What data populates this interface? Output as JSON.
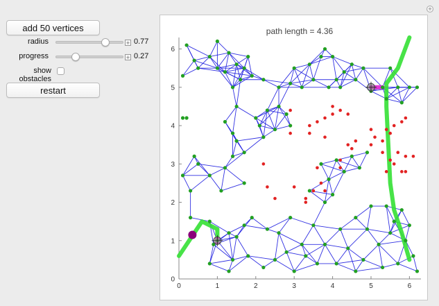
{
  "controls": {
    "add_button_label": "add 50 vertices",
    "radius": {
      "label": "radius",
      "value": "0.77",
      "fraction": 0.77
    },
    "progress": {
      "label": "progress",
      "value": "0.27",
      "fraction": 0.27
    },
    "show_obstacles_label": "show obstacles",
    "show_obstacles_checked": false,
    "restart_label": "restart"
  },
  "plot": {
    "title": "path length = 4.36",
    "x_ticks": [
      "0",
      "1",
      "2",
      "3",
      "4",
      "5",
      "6"
    ],
    "y_ticks": [
      "0",
      "1",
      "2",
      "3",
      "4",
      "5",
      "6"
    ],
    "colors": {
      "edge": "#1a1adf",
      "vertex": "#22a022",
      "obstacle": "#e22222",
      "path": "#34e034",
      "path_segment": "#e020d0",
      "agent": "#8a007a"
    }
  },
  "chart_data": {
    "type": "scatter",
    "title": "path length = 4.36",
    "xlim": [
      0,
      6.3
    ],
    "ylim": [
      0,
      6.3
    ],
    "vertices": [
      [
        0.2,
        6.1
      ],
      [
        0.4,
        5.7
      ],
      [
        0.1,
        5.3
      ],
      [
        0.5,
        5.5
      ],
      [
        0.8,
        5.8
      ],
      [
        1.0,
        5.5
      ],
      [
        1.0,
        6.2
      ],
      [
        1.3,
        5.9
      ],
      [
        1.5,
        5.6
      ],
      [
        1.6,
        5.2
      ],
      [
        1.8,
        5.8
      ],
      [
        1.2,
        5.4
      ],
      [
        1.7,
        5.5
      ],
      [
        1.9,
        5.3
      ],
      [
        1.4,
        5.0
      ],
      [
        2.2,
        5.2
      ],
      [
        2.6,
        5.0
      ],
      [
        2.9,
        5.1
      ],
      [
        3.2,
        5.0
      ],
      [
        3.0,
        5.5
      ],
      [
        3.4,
        5.6
      ],
      [
        3.7,
        5.8
      ],
      [
        3.8,
        6.0
      ],
      [
        4.0,
        5.8
      ],
      [
        4.1,
        5.2
      ],
      [
        4.5,
        5.6
      ],
      [
        4.3,
        5.4
      ],
      [
        4.6,
        5.2
      ],
      [
        4.8,
        5.5
      ],
      [
        3.9,
        5.0
      ],
      [
        3.5,
        5.2
      ],
      [
        4.2,
        5.0
      ],
      [
        1.5,
        4.5
      ],
      [
        1.2,
        4.1
      ],
      [
        1.4,
        3.8
      ],
      [
        1.5,
        3.6
      ],
      [
        2.0,
        4.2
      ],
      [
        2.3,
        4.4
      ],
      [
        2.6,
        4.5
      ],
      [
        2.8,
        4.3
      ],
      [
        2.9,
        4.0
      ],
      [
        2.5,
        3.9
      ],
      [
        2.2,
        3.7
      ],
      [
        2.1,
        4.0
      ],
      [
        1.4,
        3.2
      ],
      [
        1.7,
        3.3
      ],
      [
        1.2,
        2.9
      ],
      [
        0.4,
        3.2
      ],
      [
        0.8,
        2.7
      ],
      [
        0.1,
        2.7
      ],
      [
        0.3,
        2.3
      ],
      [
        0.5,
        3.0
      ],
      [
        1.1,
        2.3
      ],
      [
        1.7,
        2.5
      ],
      [
        0.2,
        4.2
      ],
      [
        3.7,
        3.0
      ],
      [
        4.1,
        3.1
      ],
      [
        4.5,
        3.2
      ],
      [
        4.3,
        2.8
      ],
      [
        3.9,
        2.6
      ],
      [
        4.0,
        2.2
      ],
      [
        4.7,
        2.9
      ],
      [
        4.9,
        3.3
      ],
      [
        3.8,
        2.0
      ],
      [
        0.3,
        1.6
      ],
      [
        0.8,
        1.5
      ],
      [
        1.3,
        1.2
      ],
      [
        1.0,
        1.0
      ],
      [
        1.7,
        1.4
      ],
      [
        1.9,
        1.6
      ],
      [
        1.5,
        1.1
      ],
      [
        2.3,
        1.3
      ],
      [
        2.6,
        1.2
      ],
      [
        2.9,
        1.6
      ],
      [
        3.5,
        1.4
      ],
      [
        3.2,
        0.9
      ],
      [
        2.8,
        0.7
      ],
      [
        2.5,
        0.5
      ],
      [
        2.2,
        0.3
      ],
      [
        1.8,
        0.6
      ],
      [
        1.4,
        0.5
      ],
      [
        1.3,
        0.2
      ],
      [
        0.8,
        0.4
      ],
      [
        3.0,
        0.2
      ],
      [
        3.3,
        0.6
      ],
      [
        3.8,
        0.9
      ],
      [
        4.2,
        1.3
      ],
      [
        4.6,
        1.6
      ],
      [
        5.0,
        1.9
      ],
      [
        4.4,
        0.8
      ],
      [
        4.8,
        0.5
      ],
      [
        5.2,
        0.9
      ],
      [
        5.6,
        1.5
      ],
      [
        5.9,
        1.0
      ],
      [
        6.1,
        0.6
      ],
      [
        6.2,
        0.2
      ],
      [
        5.7,
        0.4
      ],
      [
        5.3,
        0.3
      ],
      [
        4.1,
        0.4
      ],
      [
        5.4,
        1.9
      ],
      [
        5.8,
        1.8
      ],
      [
        6.0,
        1.4
      ],
      [
        5.5,
        1.2
      ],
      [
        4.9,
        1.3
      ],
      [
        4.6,
        0.2
      ],
      [
        3.6,
        0.4
      ],
      [
        5.0,
        4.9
      ],
      [
        5.3,
        5.0
      ],
      [
        5.5,
        5.5
      ],
      [
        5.7,
        5.0
      ],
      [
        6.0,
        5.0
      ],
      [
        6.2,
        5.0
      ],
      [
        5.8,
        4.6
      ],
      [
        5.4,
        4.7
      ],
      [
        3.4,
        2.3
      ],
      [
        0.9,
        0.9
      ]
    ],
    "obstacles": [
      [
        2.9,
        4.4
      ],
      [
        2.9,
        4.0
      ],
      [
        2.9,
        3.8
      ],
      [
        3.4,
        4.0
      ],
      [
        3.4,
        3.8
      ],
      [
        3.6,
        4.1
      ],
      [
        3.8,
        4.2
      ],
      [
        4.0,
        4.3
      ],
      [
        4.2,
        4.4
      ],
      [
        4.4,
        4.3
      ],
      [
        4.0,
        4.5
      ],
      [
        3.8,
        3.7
      ],
      [
        4.4,
        3.5
      ],
      [
        4.6,
        3.6
      ],
      [
        5.0,
        3.9
      ],
      [
        5.0,
        3.5
      ],
      [
        5.3,
        3.6
      ],
      [
        5.4,
        3.9
      ],
      [
        5.5,
        3.8
      ],
      [
        5.6,
        4.0
      ],
      [
        5.8,
        4.1
      ],
      [
        5.3,
        3.3
      ],
      [
        5.6,
        3.0
      ],
      [
        5.7,
        3.3
      ],
      [
        5.9,
        3.2
      ],
      [
        6.1,
        3.2
      ],
      [
        5.5,
        3.1
      ],
      [
        5.8,
        2.8
      ],
      [
        5.9,
        2.8
      ],
      [
        5.4,
        2.8
      ],
      [
        4.2,
        3.1
      ],
      [
        4.2,
        2.9
      ],
      [
        3.6,
        2.9
      ],
      [
        3.7,
        2.5
      ],
      [
        3.8,
        2.3
      ],
      [
        3.5,
        2.3
      ],
      [
        3.3,
        2.1
      ],
      [
        3.3,
        2.0
      ],
      [
        3.0,
        2.4
      ],
      [
        2.3,
        2.4
      ],
      [
        2.5,
        2.1
      ],
      [
        2.2,
        3.0
      ],
      [
        4.5,
        3.4
      ],
      [
        5.1,
        3.7
      ],
      [
        5.9,
        4.2
      ]
    ],
    "isolated_vertex": [
      0.1,
      4.2
    ],
    "path_green": [
      [
        0.0,
        0.6
      ],
      [
        0.4,
        1.2
      ],
      [
        0.6,
        1.5
      ],
      [
        1.0,
        1.3
      ],
      [
        1.0,
        0.95
      ]
    ],
    "path_magenta": [
      [
        1.0,
        0.95
      ],
      [
        1.0,
        1.05
      ]
    ],
    "path_green_upper": [
      [
        6.0,
        0.5
      ],
      [
        5.8,
        1.2
      ],
      [
        5.6,
        1.8
      ],
      [
        5.5,
        2.5
      ],
      [
        5.4,
        4.5
      ],
      [
        5.4,
        5.1
      ],
      [
        5.7,
        5.5
      ],
      [
        6.0,
        6.3
      ]
    ],
    "path_magenta_upper": [
      [
        5.0,
        5.0
      ],
      [
        5.3,
        5.0
      ]
    ],
    "agent_position": [
      0.35,
      1.15
    ],
    "start_marker": [
      1.0,
      1.0
    ],
    "goal_marker": [
      5.0,
      5.0
    ]
  }
}
